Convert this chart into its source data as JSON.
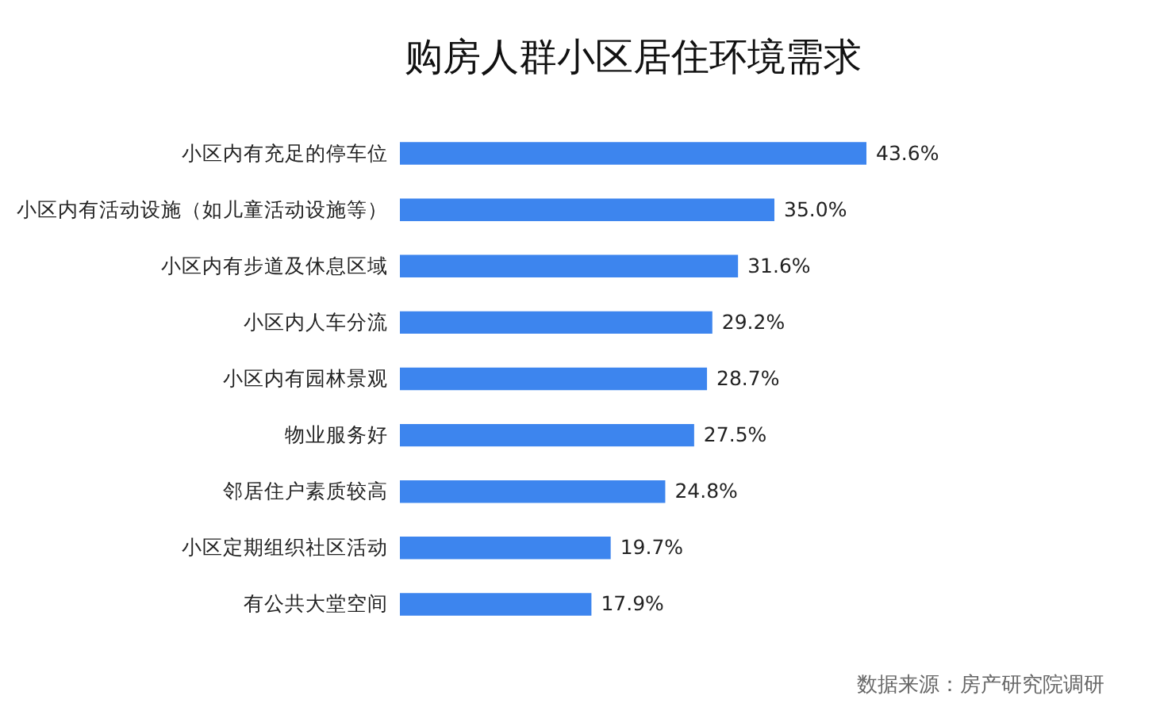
{
  "chart_data": {
    "type": "bar",
    "orientation": "horizontal",
    "title": "购房人群小区居住环境需求",
    "categories": [
      "小区内有充足的停车位",
      "小区内有活动设施（如儿童活动设施等）",
      "小区内有步道及休息区域",
      "小区内人车分流",
      "小区内有园林景观",
      "物业服务好",
      "邻居住户素质较高",
      "小区定期组织社区活动",
      "有公共大堂空间"
    ],
    "values": [
      43.6,
      35.0,
      31.6,
      29.2,
      28.7,
      27.5,
      24.8,
      19.7,
      17.9
    ],
    "value_labels": [
      "43.6%",
      "35.0%",
      "31.6%",
      "29.2%",
      "28.7%",
      "27.5%",
      "24.8%",
      "19.7%",
      "17.9%"
    ],
    "color": "#3d85ee",
    "grid": false,
    "annotations": [
      "数据来源：房产研究院调研"
    ]
  }
}
